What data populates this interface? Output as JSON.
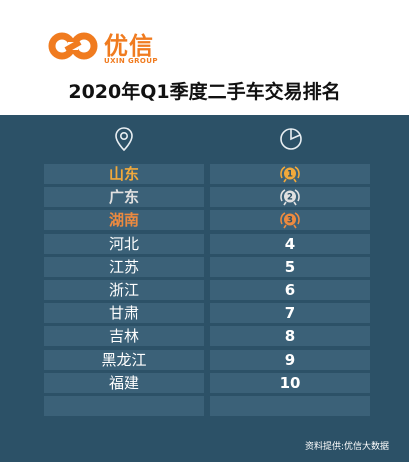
{
  "brand": {
    "name_cn": "优信",
    "name_en": "UXIN GROUP",
    "color": "#f07b1f"
  },
  "title": "2020年Q1季度二手车交易排名",
  "columns": {
    "region_icon": "location-pin-icon",
    "rank_icon": "pie-chart-icon"
  },
  "rows": [
    {
      "province": "山东",
      "rank": "1",
      "medal": "gold"
    },
    {
      "province": "广东",
      "rank": "2",
      "medal": "silver"
    },
    {
      "province": "湖南",
      "rank": "3",
      "medal": "bronze"
    },
    {
      "province": "河北",
      "rank": "4"
    },
    {
      "province": "江苏",
      "rank": "5"
    },
    {
      "province": "浙江",
      "rank": "6"
    },
    {
      "province": "甘肃",
      "rank": "7"
    },
    {
      "province": "吉林",
      "rank": "8"
    },
    {
      "province": "黑龙江",
      "rank": "9"
    },
    {
      "province": "福建",
      "rank": "10"
    }
  ],
  "colors": {
    "background": "#2c5167",
    "row": "#3b6178",
    "gold": "#f1a93b",
    "silver": "#e0e0e0",
    "bronze": "#ec8a40"
  },
  "source": "资料提供:优信大数据"
}
